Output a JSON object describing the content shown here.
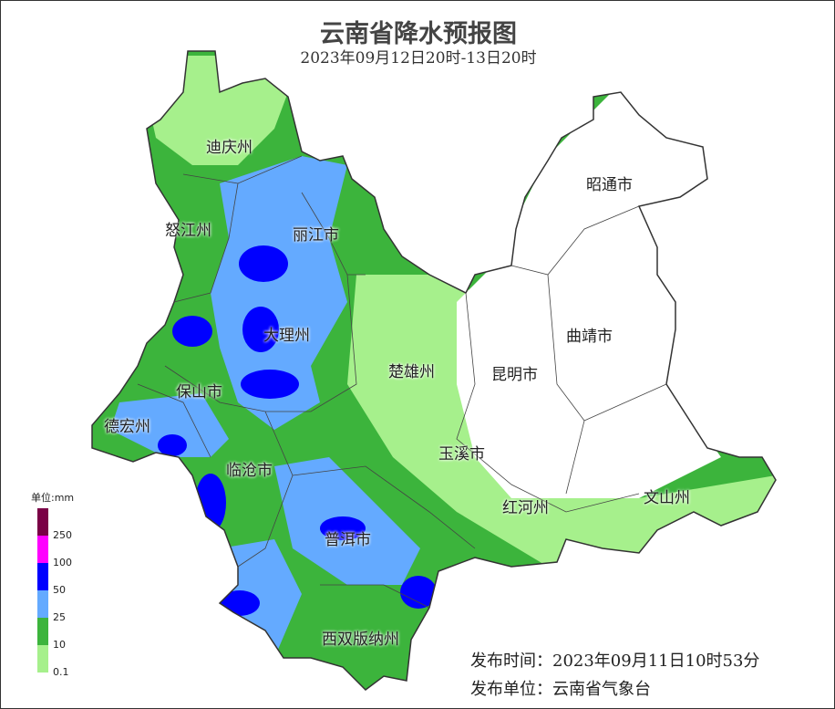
{
  "title": "云南省降水预报图",
  "subtitle": "2023年09月12日20时-13日20时",
  "legend": {
    "unit": "单位:mm",
    "items": [
      {
        "label": "250",
        "color": "#7a0046"
      },
      {
        "label": "100",
        "color": "#ff00ff"
      },
      {
        "label": "50",
        "color": "#0000ff"
      },
      {
        "label": "25",
        "color": "#64aaff"
      },
      {
        "label": "10",
        "color": "#3cb43c"
      },
      {
        "label": "0.1",
        "color": "#a6f08c"
      }
    ]
  },
  "regions": [
    "迪庆州",
    "怒江州",
    "丽江市",
    "昭通市",
    "大理州",
    "曲靖市",
    "楚雄州",
    "保山市",
    "昆明市",
    "德宏州",
    "玉溪市",
    "临沧市",
    "红河州",
    "文山州",
    "普洱市",
    "西双版纳州"
  ],
  "footer": {
    "issue_time": "发布时间：2023年09月11日10时53分",
    "issuer": "发布单位：云南省气象台"
  }
}
